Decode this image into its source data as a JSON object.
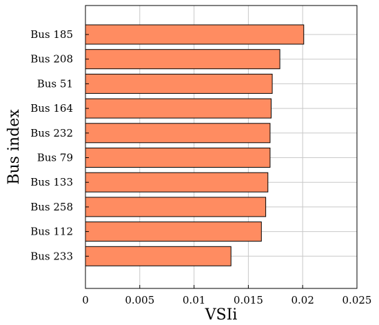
{
  "chart_data": {
    "type": "bar",
    "orientation": "horizontal",
    "categories": [
      "Bus 185",
      "Bus 208",
      "Bus 51",
      "Bus 164",
      "Bus 232",
      "Bus 79",
      "Bus 133",
      "Bus 258",
      "Bus 112",
      "Bus 233"
    ],
    "values": [
      0.0201,
      0.0179,
      0.0172,
      0.0171,
      0.017,
      0.017,
      0.0168,
      0.0166,
      0.0162,
      0.0134
    ],
    "xlabel": "VSIi",
    "ylabel": "Bus index",
    "xlim": [
      0,
      0.025
    ],
    "xticks": [
      0,
      0.005,
      0.01,
      0.015,
      0.02,
      0.025
    ],
    "xtick_labels": [
      "0",
      "0.005",
      "0.01",
      "0.015",
      "0.02",
      "0.025"
    ],
    "grid": true,
    "legend": "none",
    "colors": {
      "bar_fill": "#FF8C61",
      "bar_edge": "#000000",
      "grid": "#c8c8c8",
      "axis": "#000000"
    }
  }
}
